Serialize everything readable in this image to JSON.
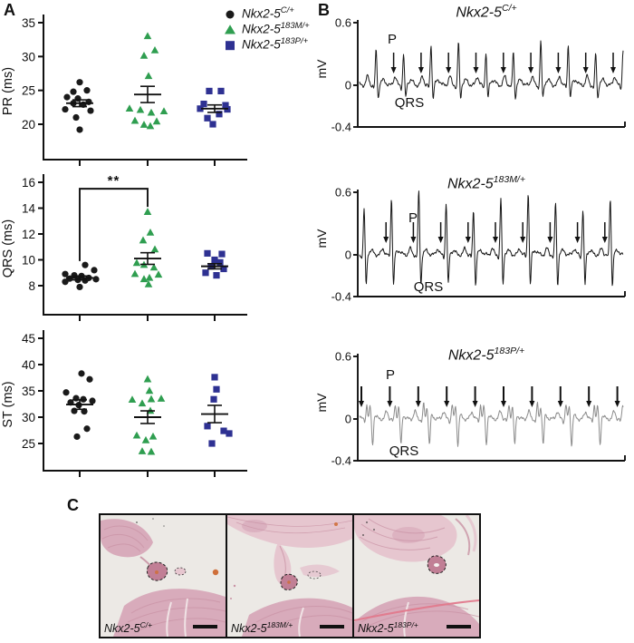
{
  "panels": {
    "a": "A",
    "b": "B",
    "c": "C"
  },
  "genotypes": [
    {
      "base": "Nkx2-5",
      "sup": "C/+",
      "marker": "circle",
      "color": "#1a1a1a"
    },
    {
      "base": "Nkx2-5",
      "sup": "183M/+",
      "marker": "triangle",
      "color": "#2f9e50"
    },
    {
      "base": "Nkx2-5",
      "sup": "183P/+",
      "marker": "square",
      "color": "#2e3192"
    }
  ],
  "chart_data": [
    {
      "type": "scatter",
      "ylabel": "PR (ms)",
      "yticks": [
        20,
        25,
        30,
        35
      ],
      "ylim": [
        17.5,
        36
      ],
      "categories": [
        "Nkx2-5 C/+",
        "Nkx2-5 183M/+",
        "Nkx2-5 183P/+"
      ],
      "groups": [
        {
          "marker": "circle",
          "color": "#1a1a1a",
          "mean": 23.1,
          "sem": 0.5,
          "points": [
            [
              0,
              26.2
            ],
            [
              8,
              25.0
            ],
            [
              -7,
              24.8
            ],
            [
              -14,
              24.0
            ],
            [
              -2,
              23.8
            ],
            [
              10,
              23.3
            ],
            [
              -7,
              23.1
            ],
            [
              4,
              22.9
            ],
            [
              -16,
              22.2
            ],
            [
              12,
              22.0
            ],
            [
              -4,
              21.0
            ],
            [
              0,
              19.2
            ]
          ]
        },
        {
          "marker": "triangle",
          "color": "#2f9e50",
          "mean": 24.4,
          "sem": 1.2,
          "points": [
            [
              0,
              33.0
            ],
            [
              8,
              30.9
            ],
            [
              -4,
              30.1
            ],
            [
              1,
              27.1
            ],
            [
              -20,
              22.3
            ],
            [
              -8,
              22.1
            ],
            [
              18,
              21.9
            ],
            [
              4,
              21.7
            ],
            [
              -14,
              20.5
            ],
            [
              10,
              20.4
            ],
            [
              -4,
              19.9
            ],
            [
              3,
              19.7
            ]
          ]
        },
        {
          "marker": "square",
          "color": "#2e3192",
          "mean": 22.3,
          "sem": 0.55,
          "points": [
            [
              -6,
              24.9
            ],
            [
              7,
              24.9
            ],
            [
              -12,
              23.0
            ],
            [
              12,
              22.8
            ],
            [
              -16,
              22.3
            ],
            [
              14,
              22.2
            ],
            [
              5,
              21.5
            ],
            [
              -8,
              20.9
            ],
            [
              -2,
              20.0
            ]
          ]
        }
      ]
    },
    {
      "type": "scatter",
      "ylabel": "QRS (ms)",
      "yticks": [
        8,
        10,
        12,
        14,
        16
      ],
      "ylim": [
        5.7,
        16
      ],
      "categories": [
        "Nkx2-5 C/+",
        "Nkx2-5 183M/+",
        "Nkx2-5 183P/+"
      ],
      "significance": {
        "pair": [
          0,
          1
        ],
        "label": "**",
        "bar_y": 15.5,
        "left_drop_to": 9.9,
        "right_drop_to": 14.1
      },
      "groups": [
        {
          "marker": "circle",
          "color": "#1a1a1a",
          "mean": 8.6,
          "sem": 0.15,
          "points": [
            [
              6,
              9.6
            ],
            [
              16,
              9.2
            ],
            [
              -16,
              8.9
            ],
            [
              -6,
              8.8
            ],
            [
              2,
              8.75
            ],
            [
              10,
              8.6
            ],
            [
              -11,
              8.55
            ],
            [
              18,
              8.5
            ],
            [
              -2,
              8.45
            ],
            [
              6,
              8.4
            ],
            [
              -16,
              8.3
            ],
            [
              0,
              7.9
            ]
          ]
        },
        {
          "marker": "triangle",
          "color": "#2f9e50",
          "mean": 10.1,
          "sem": 0.45,
          "points": [
            [
              0,
              13.7
            ],
            [
              3,
              12.1
            ],
            [
              -5,
              11.5
            ],
            [
              8,
              10.8
            ],
            [
              -12,
              9.75
            ],
            [
              -4,
              9.6
            ],
            [
              7,
              9.4
            ],
            [
              -14,
              8.9
            ],
            [
              12,
              8.85
            ],
            [
              2,
              8.6
            ],
            [
              -4,
              8.5
            ],
            [
              1,
              8.1
            ]
          ]
        },
        {
          "marker": "square",
          "color": "#2e3192",
          "mean": 9.5,
          "sem": 0.2,
          "points": [
            [
              -8,
              10.5
            ],
            [
              8,
              10.45
            ],
            [
              0,
              10.0
            ],
            [
              6,
              9.8
            ],
            [
              -4,
              9.5
            ],
            [
              10,
              9.3
            ],
            [
              -10,
              9.0
            ],
            [
              2,
              8.8
            ]
          ]
        }
      ]
    },
    {
      "type": "scatter",
      "ylabel": "ST (ms)",
      "yticks": [
        25,
        30,
        35,
        40,
        45
      ],
      "ylim": [
        19.8,
        45
      ],
      "categories": [
        "Nkx2-5 C/+",
        "Nkx2-5 183M/+",
        "Nkx2-5 183P/+"
      ],
      "groups": [
        {
          "marker": "circle",
          "color": "#1a1a1a",
          "mean": 32.4,
          "sem": 0.9,
          "points": [
            [
              2,
              38.3
            ],
            [
              11,
              37.2
            ],
            [
              -15,
              34.7
            ],
            [
              -4,
              33.6
            ],
            [
              4,
              33.4
            ],
            [
              14,
              33.1
            ],
            [
              -10,
              32.8
            ],
            [
              -1,
              32.3
            ],
            [
              -6,
              31.2
            ],
            [
              5,
              31.1
            ],
            [
              8,
              27.8
            ],
            [
              -3,
              26.3
            ]
          ]
        },
        {
          "marker": "triangle",
          "color": "#2f9e50",
          "mean": 30.0,
          "sem": 1.2,
          "points": [
            [
              0,
              37.2
            ],
            [
              2,
              35.0
            ],
            [
              15,
              33.5
            ],
            [
              4,
              33.4
            ],
            [
              -17,
              33.3
            ],
            [
              -6,
              32.6
            ],
            [
              3,
              31.2
            ],
            [
              -12,
              26.5
            ],
            [
              6,
              26.3
            ],
            [
              -2,
              25.6
            ],
            [
              -6,
              23.5
            ],
            [
              4,
              23.4
            ]
          ]
        },
        {
          "marker": "square",
          "color": "#2e3192",
          "mean": 30.6,
          "sem": 1.65,
          "points": [
            [
              0,
              37.6
            ],
            [
              2,
              35.3
            ],
            [
              -1,
              33.4
            ],
            [
              -8,
              28.3
            ],
            [
              10,
              27.4
            ],
            [
              16,
              26.9
            ],
            [
              -3,
              25.0
            ]
          ]
        }
      ]
    },
    {
      "type": "line",
      "name": "surface-ecg",
      "ylabel": "mV",
      "yticks": [
        0.6,
        0,
        -0.4
      ],
      "ylim": [
        -0.4,
        0.6
      ],
      "traces": [
        {
          "title_base": "Nkx2-5",
          "title_sup": "C/+",
          "p_label": "P",
          "qrs_label": "QRS",
          "n_beats": 11,
          "n_arrows": 9,
          "r_amp_mv": 0.36,
          "s_amp_mv": -0.13,
          "p_amp_mv": 0.085,
          "t_amp_mv": 0.05,
          "notched": false,
          "color": "#1a1a1a"
        },
        {
          "title_base": "Nkx2-5",
          "title_sup": "183M/+",
          "p_label": "P",
          "qrs_label": "QRS",
          "n_beats": 10,
          "n_arrows": 9,
          "r_amp_mv": 0.52,
          "s_amp_mv": -0.3,
          "p_amp_mv": 0.06,
          "t_amp_mv": 0.04,
          "notched": false,
          "color": "#161616"
        },
        {
          "title_base": "Nkx2-5",
          "title_sup": "183P/+",
          "p_label": "P",
          "qrs_label": "QRS",
          "n_beats": 10,
          "n_arrows": 10,
          "r_amp_mv": 0.14,
          "s_amp_mv": -0.28,
          "p_amp_mv": 0.07,
          "t_amp_mv": 0.04,
          "notched": true,
          "color": "#8c8c8c"
        }
      ]
    }
  ],
  "histology": {
    "bg": "#ece9e5",
    "tissue_light": "#e6c6cf",
    "tissue_mid": "#d8abbb",
    "tissue_dark": "#c992a4",
    "node_fill": "#c17f95",
    "accent_orange": "#cf6f3a",
    "streak_pink": "#e2798c",
    "labels": [
      {
        "base": "Nkx2-5",
        "sup": "C/+"
      },
      {
        "base": "Nkx2-5",
        "sup": "183M/+"
      },
      {
        "base": "Nkx2-5",
        "sup": "183P/+"
      }
    ]
  }
}
